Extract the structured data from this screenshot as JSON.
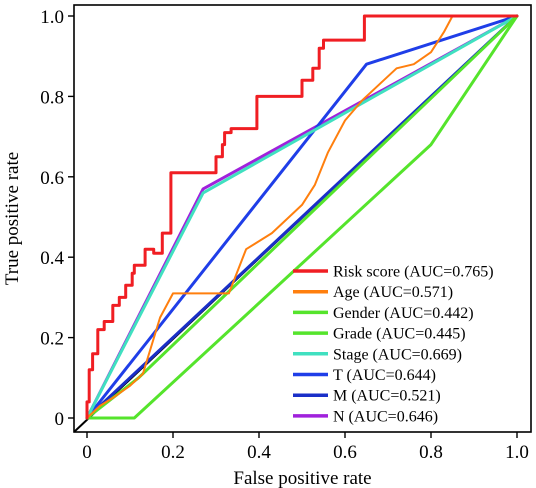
{
  "chart_data": {
    "type": "line",
    "xlabel": "False positive rate",
    "ylabel": "True positive rate",
    "xlim": [
      0,
      1
    ],
    "ylim": [
      0,
      1
    ],
    "x_ticks": [
      "0",
      "0.2",
      "0.4",
      "0.6",
      "0.8",
      "1.0"
    ],
    "y_ticks": [
      "0",
      "0.2",
      "0.4",
      "0.6",
      "0.8",
      "1.0"
    ],
    "grid": false,
    "legend_position": "bottom-right",
    "diagonal_reference": {
      "color": "#000000",
      "x": [
        0,
        1
      ],
      "y": [
        0,
        1
      ]
    },
    "series": [
      {
        "name": "Risk score (AUC=0.765)",
        "color": "#f01e23",
        "x": [
          0,
          0.0,
          0.005,
          0.005,
          0.013,
          0.013,
          0.025,
          0.025,
          0.04,
          0.04,
          0.06,
          0.06,
          0.075,
          0.075,
          0.09,
          0.09,
          0.105,
          0.105,
          0.11,
          0.11,
          0.135,
          0.135,
          0.155,
          0.155,
          0.175,
          0.175,
          0.195,
          0.195,
          0.3,
          0.3,
          0.315,
          0.315,
          0.32,
          0.32,
          0.335,
          0.335,
          0.395,
          0.395,
          0.5,
          0.5,
          0.525,
          0.525,
          0.54,
          0.54,
          0.55,
          0.55,
          0.645,
          0.645,
          0.81,
          0.81,
          0.82,
          0.82,
          1.0
        ],
        "y": [
          0,
          0.04,
          0.04,
          0.12,
          0.12,
          0.16,
          0.16,
          0.22,
          0.22,
          0.24,
          0.24,
          0.28,
          0.28,
          0.3,
          0.3,
          0.33,
          0.33,
          0.36,
          0.36,
          0.38,
          0.38,
          0.42,
          0.42,
          0.41,
          0.41,
          0.46,
          0.46,
          0.61,
          0.61,
          0.65,
          0.65,
          0.68,
          0.68,
          0.71,
          0.71,
          0.72,
          0.72,
          0.8,
          0.8,
          0.84,
          0.84,
          0.87,
          0.87,
          0.92,
          0.92,
          0.94,
          0.94,
          1.0,
          1.0,
          1.0,
          1.0,
          1.0,
          1.0
        ]
      },
      {
        "name": "Age (AUC=0.571)",
        "color": "#ff7f0e",
        "x": [
          0,
          0.03,
          0.06,
          0.1,
          0.13,
          0.17,
          0.2,
          0.27,
          0.33,
          0.37,
          0.43,
          0.47,
          0.5,
          0.53,
          0.56,
          0.6,
          0.64,
          0.68,
          0.72,
          0.76,
          0.8,
          0.83,
          0.85,
          0.87,
          1.0
        ],
        "y": [
          0,
          0.03,
          0.05,
          0.08,
          0.11,
          0.25,
          0.31,
          0.31,
          0.31,
          0.42,
          0.46,
          0.5,
          0.53,
          0.58,
          0.66,
          0.74,
          0.79,
          0.83,
          0.87,
          0.88,
          0.91,
          0.96,
          1.0,
          1.0,
          1.0
        ],
        "width": 2
      },
      {
        "name": "Gender (AUC=0.442)",
        "color": "#55e42c",
        "x": [
          0,
          0.11,
          0.8,
          1.0
        ],
        "y": [
          0,
          0.0,
          0.68,
          1.0
        ]
      },
      {
        "name": "Grade  (AUC=0.445)",
        "color": "#55e42c",
        "x": [
          0,
          0.12,
          1.0
        ],
        "y": [
          0,
          0.1,
          1.0
        ]
      },
      {
        "name": "Stage (AUC=0.669)",
        "color": "#40e0c0",
        "x": [
          0,
          0.27,
          1.0
        ],
        "y": [
          0,
          0.56,
          1.0
        ]
      },
      {
        "name": "T (AUC=0.644)",
        "color": "#1f3ee8",
        "x": [
          0,
          0.65,
          1.0
        ],
        "y": [
          0,
          0.88,
          1.0
        ]
      },
      {
        "name": "M (AUC=0.521)",
        "color": "#1a2fc8",
        "x": [
          0,
          1.0
        ],
        "y": [
          0,
          1.0
        ]
      },
      {
        "name": "N (AUC=0.646)",
        "color": "#a021dc",
        "x": [
          0,
          0.27,
          1.0
        ],
        "y": [
          0,
          0.57,
          1.0
        ]
      }
    ]
  }
}
